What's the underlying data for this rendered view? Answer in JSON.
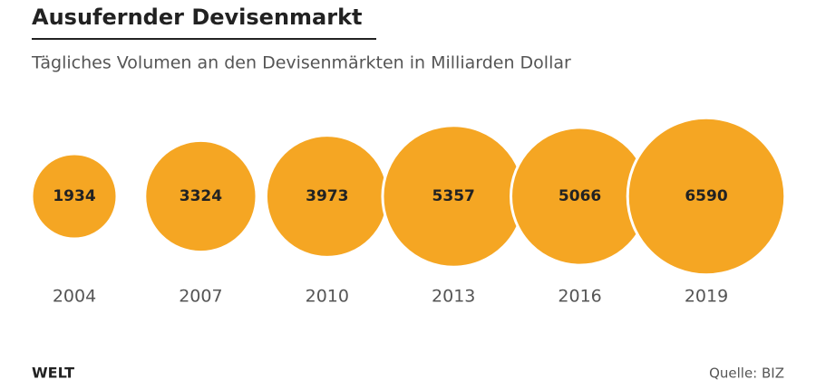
{
  "chart_data": {
    "type": "bubble",
    "title": "Ausufernder Devisenmarkt",
    "subtitle": "Tägliches Volumen an den Devisenmärkten in Milliarden Dollar",
    "categories": [
      "2004",
      "2007",
      "2010",
      "2013",
      "2016",
      "2019"
    ],
    "values": [
      1934,
      3324,
      3973,
      5357,
      5066,
      6590
    ],
    "color": "#f5a623",
    "logo": "WELT",
    "source": "Quelle: BIZ"
  }
}
